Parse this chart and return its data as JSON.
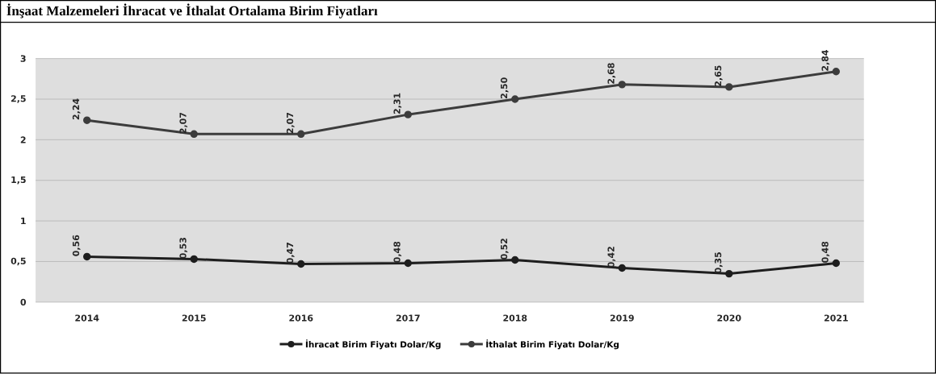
{
  "chart_data": {
    "type": "line",
    "title": "İnşaat Malzemeleri İhracat ve İthalat Ortalama Birim Fiyatları",
    "categories": [
      "2014",
      "2015",
      "2016",
      "2017",
      "2018",
      "2019",
      "2020",
      "2021"
    ],
    "series": [
      {
        "name": "İhracat Birim Fiyatı Dolar/Kg",
        "color": "#1e1e1e",
        "values": [
          0.56,
          0.53,
          0.47,
          0.48,
          0.52,
          0.42,
          0.35,
          0.48
        ],
        "value_labels": [
          "0,56",
          "0,53",
          "0,47",
          "0,48",
          "0,52",
          "0,42",
          "0,35",
          "0,48"
        ]
      },
      {
        "name": "İthalat Birim Fiyatı Dolar/Kg",
        "color": "#3c3c3c",
        "values": [
          2.24,
          2.07,
          2.07,
          2.31,
          2.5,
          2.68,
          2.65,
          2.84
        ],
        "value_labels": [
          "2,24",
          "2,07",
          "2,07",
          "2,31",
          "2,50",
          "2,68",
          "2,65",
          "2,84"
        ]
      }
    ],
    "ylim": [
      0,
      3
    ],
    "yticks": [
      0,
      {
        "value": 0.5,
        "label": "0,5"
      },
      1,
      {
        "value": 1.5,
        "label": "1,5"
      },
      2,
      {
        "value": 2.5,
        "label": "2,5"
      },
      3
    ],
    "grid": "y",
    "legend": "bottom",
    "marker": "circle",
    "line_style": "solid"
  }
}
